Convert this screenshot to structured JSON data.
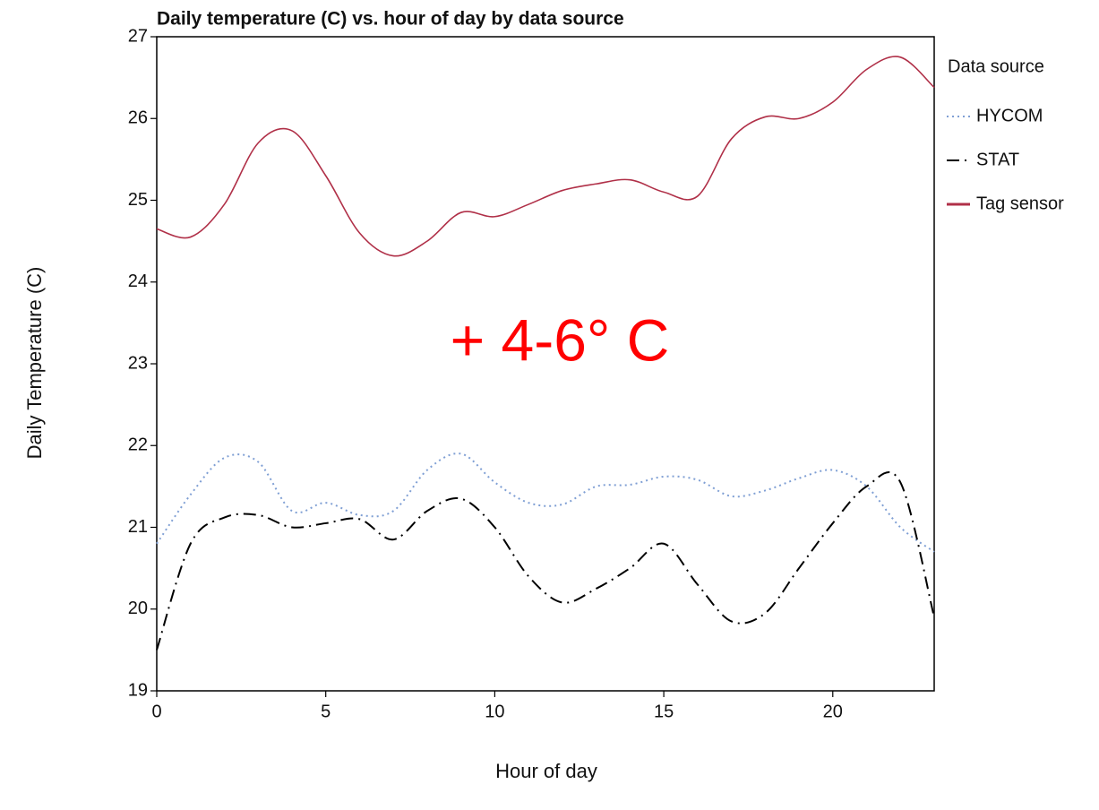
{
  "chart_data": {
    "type": "line",
    "title": "Daily temperature (C) vs. hour of day by data source",
    "x_label": "Hour of day",
    "y_label": "Daily Temperature (C)",
    "annotation": "+ 4-6° C",
    "legend_title": "Data source",
    "legend": "right",
    "x": [
      0,
      1,
      2,
      3,
      4,
      5,
      6,
      7,
      8,
      9,
      10,
      11,
      12,
      13,
      14,
      15,
      16,
      17,
      18,
      19,
      20,
      21,
      22,
      23
    ],
    "series": [
      {
        "name": "HYCOM",
        "color": "#7f9fd4",
        "style": "dotted",
        "values": [
          20.8,
          21.4,
          21.85,
          21.8,
          21.2,
          21.3,
          21.15,
          21.2,
          21.7,
          21.9,
          21.55,
          21.3,
          21.28,
          21.5,
          21.52,
          21.62,
          21.58,
          21.38,
          21.45,
          21.6,
          21.7,
          21.5,
          21.0,
          20.7
        ]
      },
      {
        "name": "STAT",
        "color": "#000000",
        "style": "dashdot",
        "values": [
          19.5,
          20.8,
          21.12,
          21.15,
          21.0,
          21.05,
          21.1,
          20.85,
          21.2,
          21.35,
          21.0,
          20.4,
          20.08,
          20.25,
          20.5,
          20.8,
          20.3,
          19.85,
          19.95,
          20.5,
          21.05,
          21.5,
          21.55,
          19.9
        ]
      },
      {
        "name": "Tag sensor",
        "color": "#b03048",
        "style": "solid",
        "values": [
          24.65,
          24.55,
          24.95,
          25.7,
          25.85,
          25.3,
          24.6,
          24.32,
          24.5,
          24.85,
          24.8,
          24.95,
          25.12,
          25.2,
          25.25,
          25.1,
          25.05,
          25.75,
          26.02,
          26.0,
          26.2,
          26.6,
          26.75,
          26.38
        ]
      }
    ],
    "xlim": [
      0,
      23
    ],
    "xticks": [
      0,
      5,
      10,
      15,
      20
    ],
    "ylim": [
      19,
      27
    ],
    "yticks": [
      19,
      20,
      21,
      22,
      23,
      24,
      25,
      26,
      27
    ]
  }
}
